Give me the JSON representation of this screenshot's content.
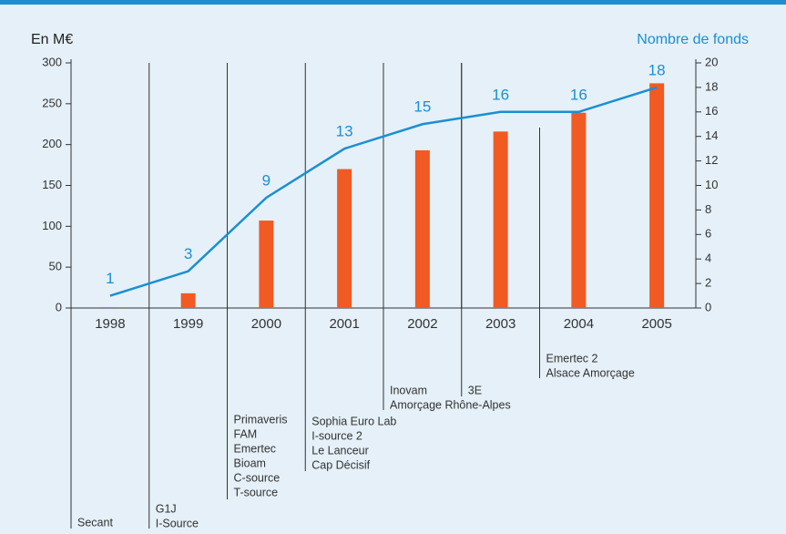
{
  "chart_data": {
    "type": "bar_line",
    "ylabel": "En M€",
    "y2label": "Nombre de fonds",
    "categories": [
      "1998",
      "1999",
      "2000",
      "2001",
      "2002",
      "2003",
      "2004",
      "2005"
    ],
    "series": [
      {
        "type": "bar",
        "color": "#f15a22",
        "values": [
          1,
          18,
          107,
          170,
          193,
          216,
          239,
          275
        ]
      },
      {
        "type": "line",
        "color": "#1a8fd1",
        "axis": "y2",
        "values": [
          1,
          3,
          9,
          13,
          15,
          16,
          16,
          18
        ]
      }
    ],
    "ylim": [
      0,
      300
    ],
    "yticks": [
      0,
      50,
      100,
      150,
      200,
      250,
      300
    ],
    "y2lim": [
      0,
      20
    ],
    "y2ticks": [
      0,
      2,
      4,
      6,
      8,
      10,
      12,
      14,
      16,
      18,
      20
    ],
    "annotations": [
      [
        "Secant"
      ],
      [
        "G1J",
        "I-Source"
      ],
      [
        "Primaveris",
        "FAM",
        "Emertec",
        "Bioam",
        "C-source",
        "T-source"
      ],
      [
        "Sophia Euro Lab",
        "I-source 2",
        "Le Lanceur",
        "Cap Décisif"
      ],
      [
        "Inovam",
        "Amorçage Rhône-Alpes"
      ],
      [
        "3E"
      ],
      [
        "Emertec 2",
        "Alsace Amorçage"
      ]
    ]
  }
}
